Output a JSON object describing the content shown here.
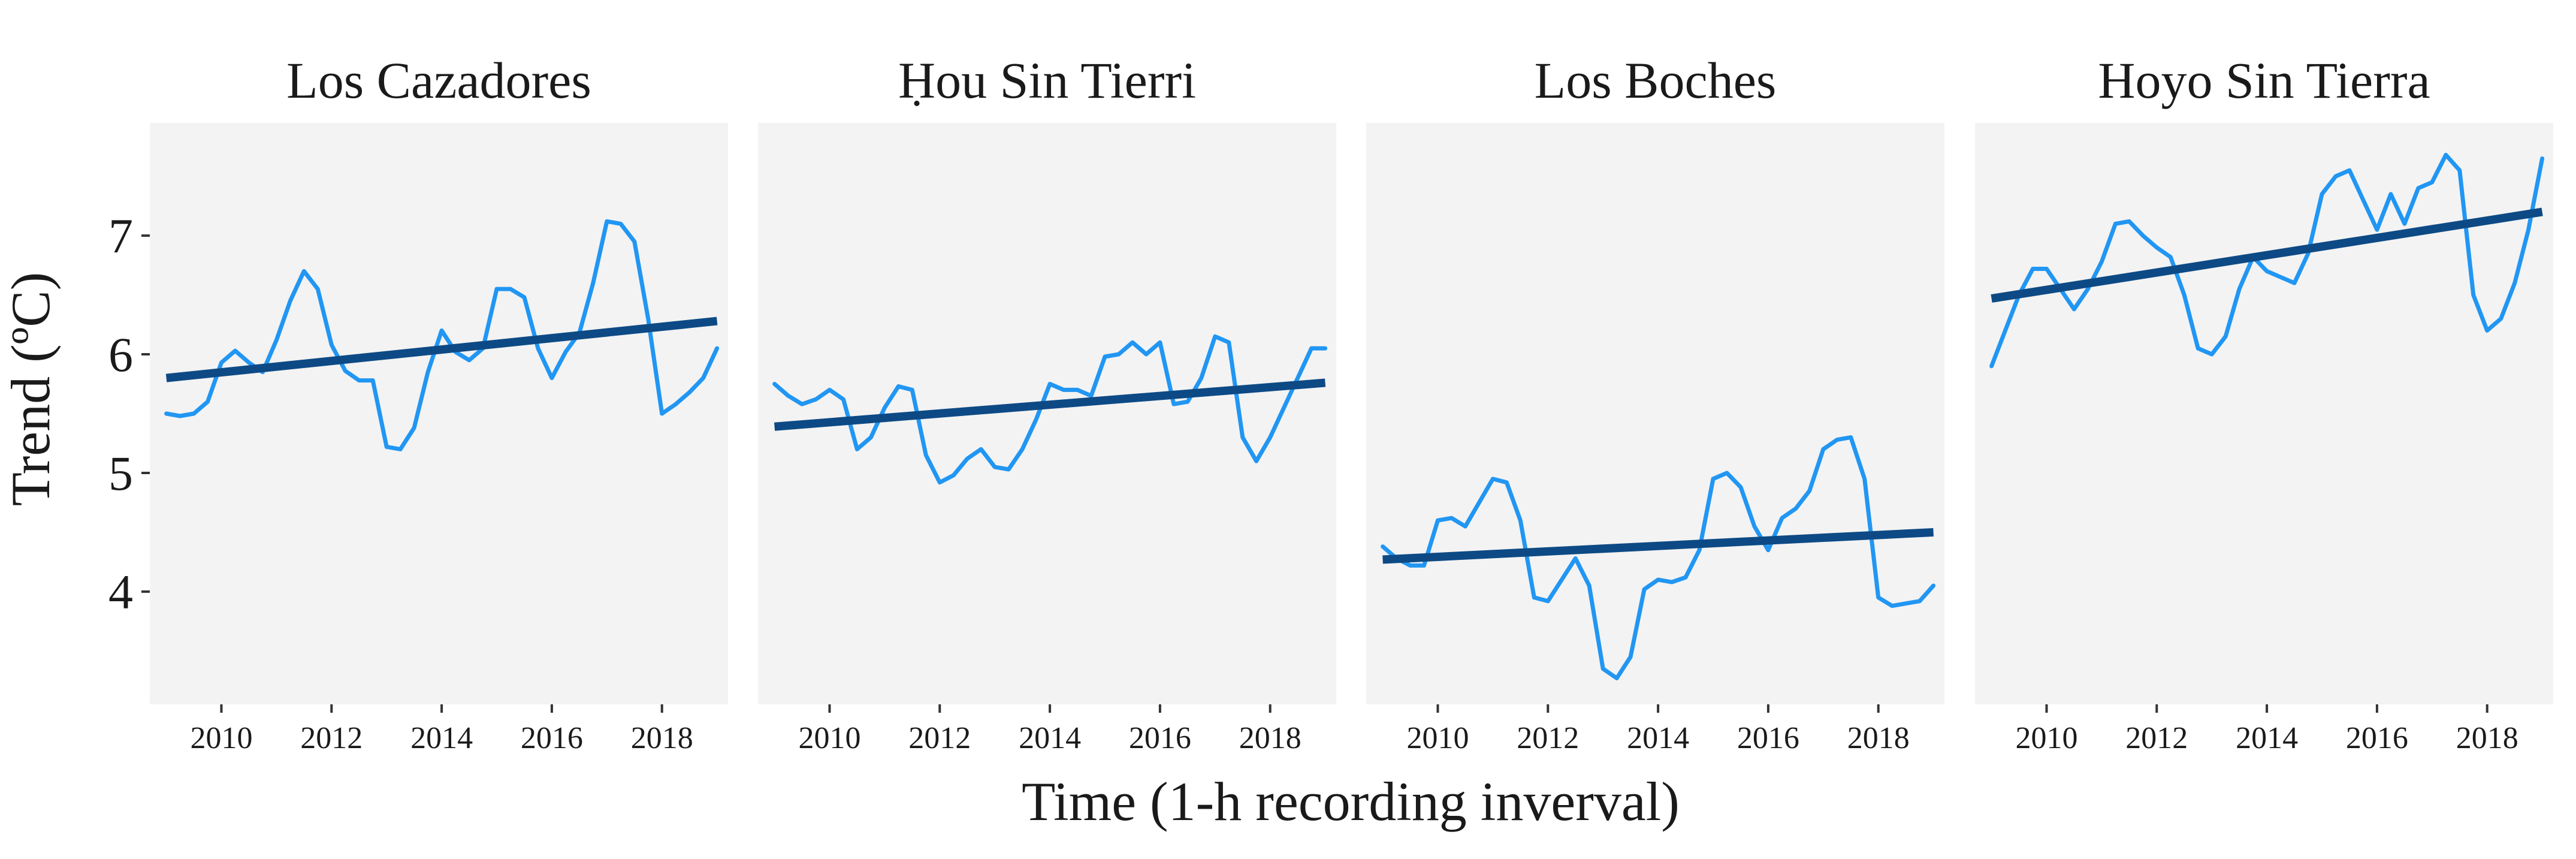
{
  "chart_data": {
    "type": "line",
    "xlabel": "Time (1-h recording inverval)",
    "ylabel": "Trend (ºC)",
    "xlim": [
      2008.7,
      2019.2
    ],
    "ylim": [
      3.05,
      7.95
    ],
    "x_ticks": [
      2010,
      2012,
      2014,
      2016,
      2018
    ],
    "y_ticks": [
      4,
      5,
      6,
      7
    ],
    "grid": false,
    "facet_background": "#f3f3f3",
    "colors": {
      "series": "#2196f3",
      "trend": "#0d4a85"
    },
    "panels": [
      {
        "title": "Los Cazadores",
        "series": {
          "x": [
            2009.0,
            2009.25,
            2009.5,
            2009.75,
            2010.0,
            2010.25,
            2010.5,
            2010.75,
            2011.0,
            2011.25,
            2011.5,
            2011.75,
            2012.0,
            2012.25,
            2012.5,
            2012.75,
            2013.0,
            2013.25,
            2013.5,
            2013.75,
            2014.0,
            2014.25,
            2014.5,
            2014.75,
            2015.0,
            2015.25,
            2015.5,
            2015.75,
            2016.0,
            2016.25,
            2016.5,
            2016.75,
            2017.0,
            2017.25,
            2017.5,
            2017.75,
            2018.0,
            2018.25,
            2018.5,
            2018.75,
            2019.0
          ],
          "y": [
            5.5,
            5.48,
            5.5,
            5.6,
            5.93,
            6.03,
            5.93,
            5.85,
            6.12,
            6.45,
            6.7,
            6.55,
            6.08,
            5.86,
            5.78,
            5.78,
            5.22,
            5.2,
            5.38,
            5.85,
            6.2,
            6.02,
            5.95,
            6.05,
            6.55,
            6.55,
            6.48,
            6.05,
            5.8,
            6.02,
            6.18,
            6.6,
            7.12,
            7.1,
            6.95,
            6.3,
            5.5,
            5.58,
            5.68,
            5.8,
            6.05
          ]
        },
        "trend": {
          "x": [
            2009.0,
            2019.0
          ],
          "y": [
            5.8,
            6.28
          ]
        }
      },
      {
        "title": "Ḥou Sin Tierri",
        "series": {
          "x": [
            2009.0,
            2009.25,
            2009.5,
            2009.75,
            2010.0,
            2010.25,
            2010.5,
            2010.75,
            2011.0,
            2011.25,
            2011.5,
            2011.75,
            2012.0,
            2012.25,
            2012.5,
            2012.75,
            2013.0,
            2013.25,
            2013.5,
            2013.75,
            2014.0,
            2014.25,
            2014.5,
            2014.75,
            2015.0,
            2015.25,
            2015.5,
            2015.75,
            2016.0,
            2016.25,
            2016.5,
            2016.75,
            2017.0,
            2017.25,
            2017.5,
            2017.75,
            2018.0,
            2018.25,
            2018.5,
            2018.75,
            2019.0
          ],
          "y": [
            5.75,
            5.65,
            5.58,
            5.62,
            5.7,
            5.62,
            5.2,
            5.3,
            5.55,
            5.73,
            5.7,
            5.15,
            4.92,
            4.98,
            5.12,
            5.2,
            5.05,
            5.03,
            5.2,
            5.45,
            5.75,
            5.7,
            5.7,
            5.65,
            5.98,
            6.0,
            6.1,
            6.0,
            6.1,
            5.58,
            5.6,
            5.8,
            6.15,
            6.1,
            5.3,
            5.1,
            5.3,
            5.55,
            5.8,
            6.05,
            6.05
          ]
        },
        "trend": {
          "x": [
            2009.0,
            2019.0
          ],
          "y": [
            5.39,
            5.76
          ]
        }
      },
      {
        "title": "Los Boches",
        "series": {
          "x": [
            2009.0,
            2009.25,
            2009.5,
            2009.75,
            2010.0,
            2010.25,
            2010.5,
            2010.75,
            2011.0,
            2011.25,
            2011.5,
            2011.75,
            2012.0,
            2012.25,
            2012.5,
            2012.75,
            2013.0,
            2013.25,
            2013.5,
            2013.75,
            2014.0,
            2014.25,
            2014.5,
            2014.75,
            2015.0,
            2015.25,
            2015.5,
            2015.75,
            2016.0,
            2016.25,
            2016.5,
            2016.75,
            2017.0,
            2017.25,
            2017.5,
            2017.75,
            2018.0,
            2018.25,
            2018.5,
            2018.75,
            2019.0
          ],
          "y": [
            4.38,
            4.28,
            4.22,
            4.22,
            4.6,
            4.62,
            4.55,
            4.75,
            4.95,
            4.92,
            4.6,
            3.95,
            3.92,
            4.1,
            4.28,
            4.05,
            3.35,
            3.27,
            3.45,
            4.02,
            4.1,
            4.08,
            4.12,
            4.35,
            4.95,
            5.0,
            4.88,
            4.55,
            4.35,
            4.62,
            4.7,
            4.85,
            5.2,
            5.28,
            5.3,
            4.95,
            3.95,
            3.88,
            3.9,
            3.92,
            4.05
          ]
        },
        "trend": {
          "x": [
            2009.0,
            2019.0
          ],
          "y": [
            4.27,
            4.5
          ]
        }
      },
      {
        "title": "Hoyo Sin Tierra",
        "series": {
          "x": [
            2009.0,
            2009.25,
            2009.5,
            2009.75,
            2010.0,
            2010.25,
            2010.5,
            2010.75,
            2011.0,
            2011.25,
            2011.5,
            2011.75,
            2012.0,
            2012.25,
            2012.5,
            2012.75,
            2013.0,
            2013.25,
            2013.5,
            2013.75,
            2014.0,
            2014.25,
            2014.5,
            2014.75,
            2015.0,
            2015.25,
            2015.5,
            2015.75,
            2016.0,
            2016.25,
            2016.5,
            2016.75,
            2017.0,
            2017.25,
            2017.5,
            2017.75,
            2018.0,
            2018.25,
            2018.5,
            2018.75,
            2019.0
          ],
          "y": [
            5.9,
            6.2,
            6.5,
            6.72,
            6.72,
            6.55,
            6.38,
            6.55,
            6.78,
            7.1,
            7.12,
            7.0,
            6.9,
            6.82,
            6.5,
            6.05,
            6.0,
            6.15,
            6.55,
            6.82,
            6.7,
            6.65,
            6.6,
            6.85,
            7.35,
            7.5,
            7.55,
            7.3,
            7.05,
            7.35,
            7.1,
            7.4,
            7.45,
            7.68,
            7.55,
            6.5,
            6.2,
            6.3,
            6.6,
            7.05,
            7.65
          ]
        },
        "trend": {
          "x": [
            2009.0,
            2019.0
          ],
          "y": [
            6.47,
            7.2
          ]
        }
      }
    ]
  }
}
